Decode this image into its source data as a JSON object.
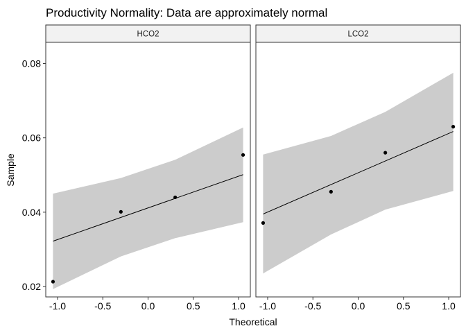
{
  "chart_data": {
    "type": "scatter",
    "title": "Productivity Normality: Data are approximately normal",
    "xlabel": "Theoretical",
    "ylabel": "Sample",
    "xlim": [
      -1.13,
      1.13
    ],
    "ylim": [
      0.0172,
      0.0857
    ],
    "xticks": [
      -1.0,
      -0.5,
      0.0,
      0.5,
      1.0
    ],
    "xtick_labels": [
      "-1.0",
      "-0.5",
      "0.0",
      "0.5",
      "1.0"
    ],
    "yticks": [
      0.02,
      0.04,
      0.06,
      0.08
    ],
    "ytick_labels": [
      "0.02",
      "0.04",
      "0.06",
      "0.08"
    ],
    "grid": false,
    "band_color": "#cccccc",
    "point_color": "#000000",
    "panels": [
      {
        "strip_label": "HCO2",
        "points": [
          {
            "x": -1.05,
            "y": 0.0213
          },
          {
            "x": -0.3,
            "y": 0.0401
          },
          {
            "x": 0.3,
            "y": 0.044
          },
          {
            "x": 1.05,
            "y": 0.0554
          }
        ],
        "line": [
          {
            "x": -1.05,
            "y": 0.0322
          },
          {
            "x": 1.05,
            "y": 0.0501
          }
        ],
        "band": [
          {
            "x": -1.05,
            "lower": 0.0193,
            "upper": 0.045
          },
          {
            "x": -0.3,
            "lower": 0.0281,
            "upper": 0.0492
          },
          {
            "x": 0.3,
            "lower": 0.033,
            "upper": 0.0541
          },
          {
            "x": 1.05,
            "lower": 0.0373,
            "upper": 0.0628
          }
        ]
      },
      {
        "strip_label": "LCO2",
        "points": [
          {
            "x": -1.05,
            "y": 0.0371
          },
          {
            "x": -0.3,
            "y": 0.0455
          },
          {
            "x": 0.3,
            "y": 0.056
          },
          {
            "x": 1.05,
            "y": 0.063
          }
        ],
        "line": [
          {
            "x": -1.05,
            "y": 0.0395
          },
          {
            "x": 1.05,
            "y": 0.0617
          }
        ],
        "band": [
          {
            "x": -1.05,
            "lower": 0.0235,
            "upper": 0.0555
          },
          {
            "x": -0.3,
            "lower": 0.034,
            "upper": 0.0605
          },
          {
            "x": 0.3,
            "lower": 0.0407,
            "upper": 0.067
          },
          {
            "x": 1.05,
            "lower": 0.0457,
            "upper": 0.0775
          }
        ]
      }
    ]
  }
}
